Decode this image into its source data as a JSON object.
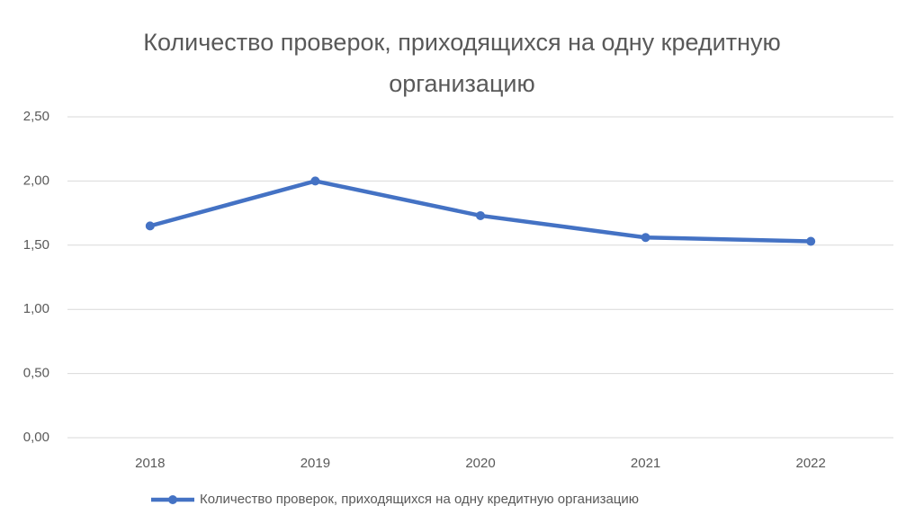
{
  "chart_data": {
    "type": "line",
    "title": "Количество проверок, приходящихся на одну кредитную организацию",
    "categories": [
      "2018",
      "2019",
      "2020",
      "2021",
      "2022"
    ],
    "series": [
      {
        "name": "Количество проверок, приходящихся на одну кредитную организацию",
        "color": "#4472c4",
        "values": [
          1.65,
          2.0,
          1.73,
          1.56,
          1.53
        ]
      }
    ],
    "ylim": [
      0,
      2.5
    ],
    "yticks": [
      {
        "value": 0,
        "label": "0,00"
      },
      {
        "value": 0.5,
        "label": "0,50"
      },
      {
        "value": 1,
        "label": "1,00"
      },
      {
        "value": 1.5,
        "label": "1,50"
      },
      {
        "value": 2,
        "label": "2,00"
      },
      {
        "value": 2.5,
        "label": "2,50"
      }
    ],
    "grid": true,
    "legend": "bottom"
  }
}
